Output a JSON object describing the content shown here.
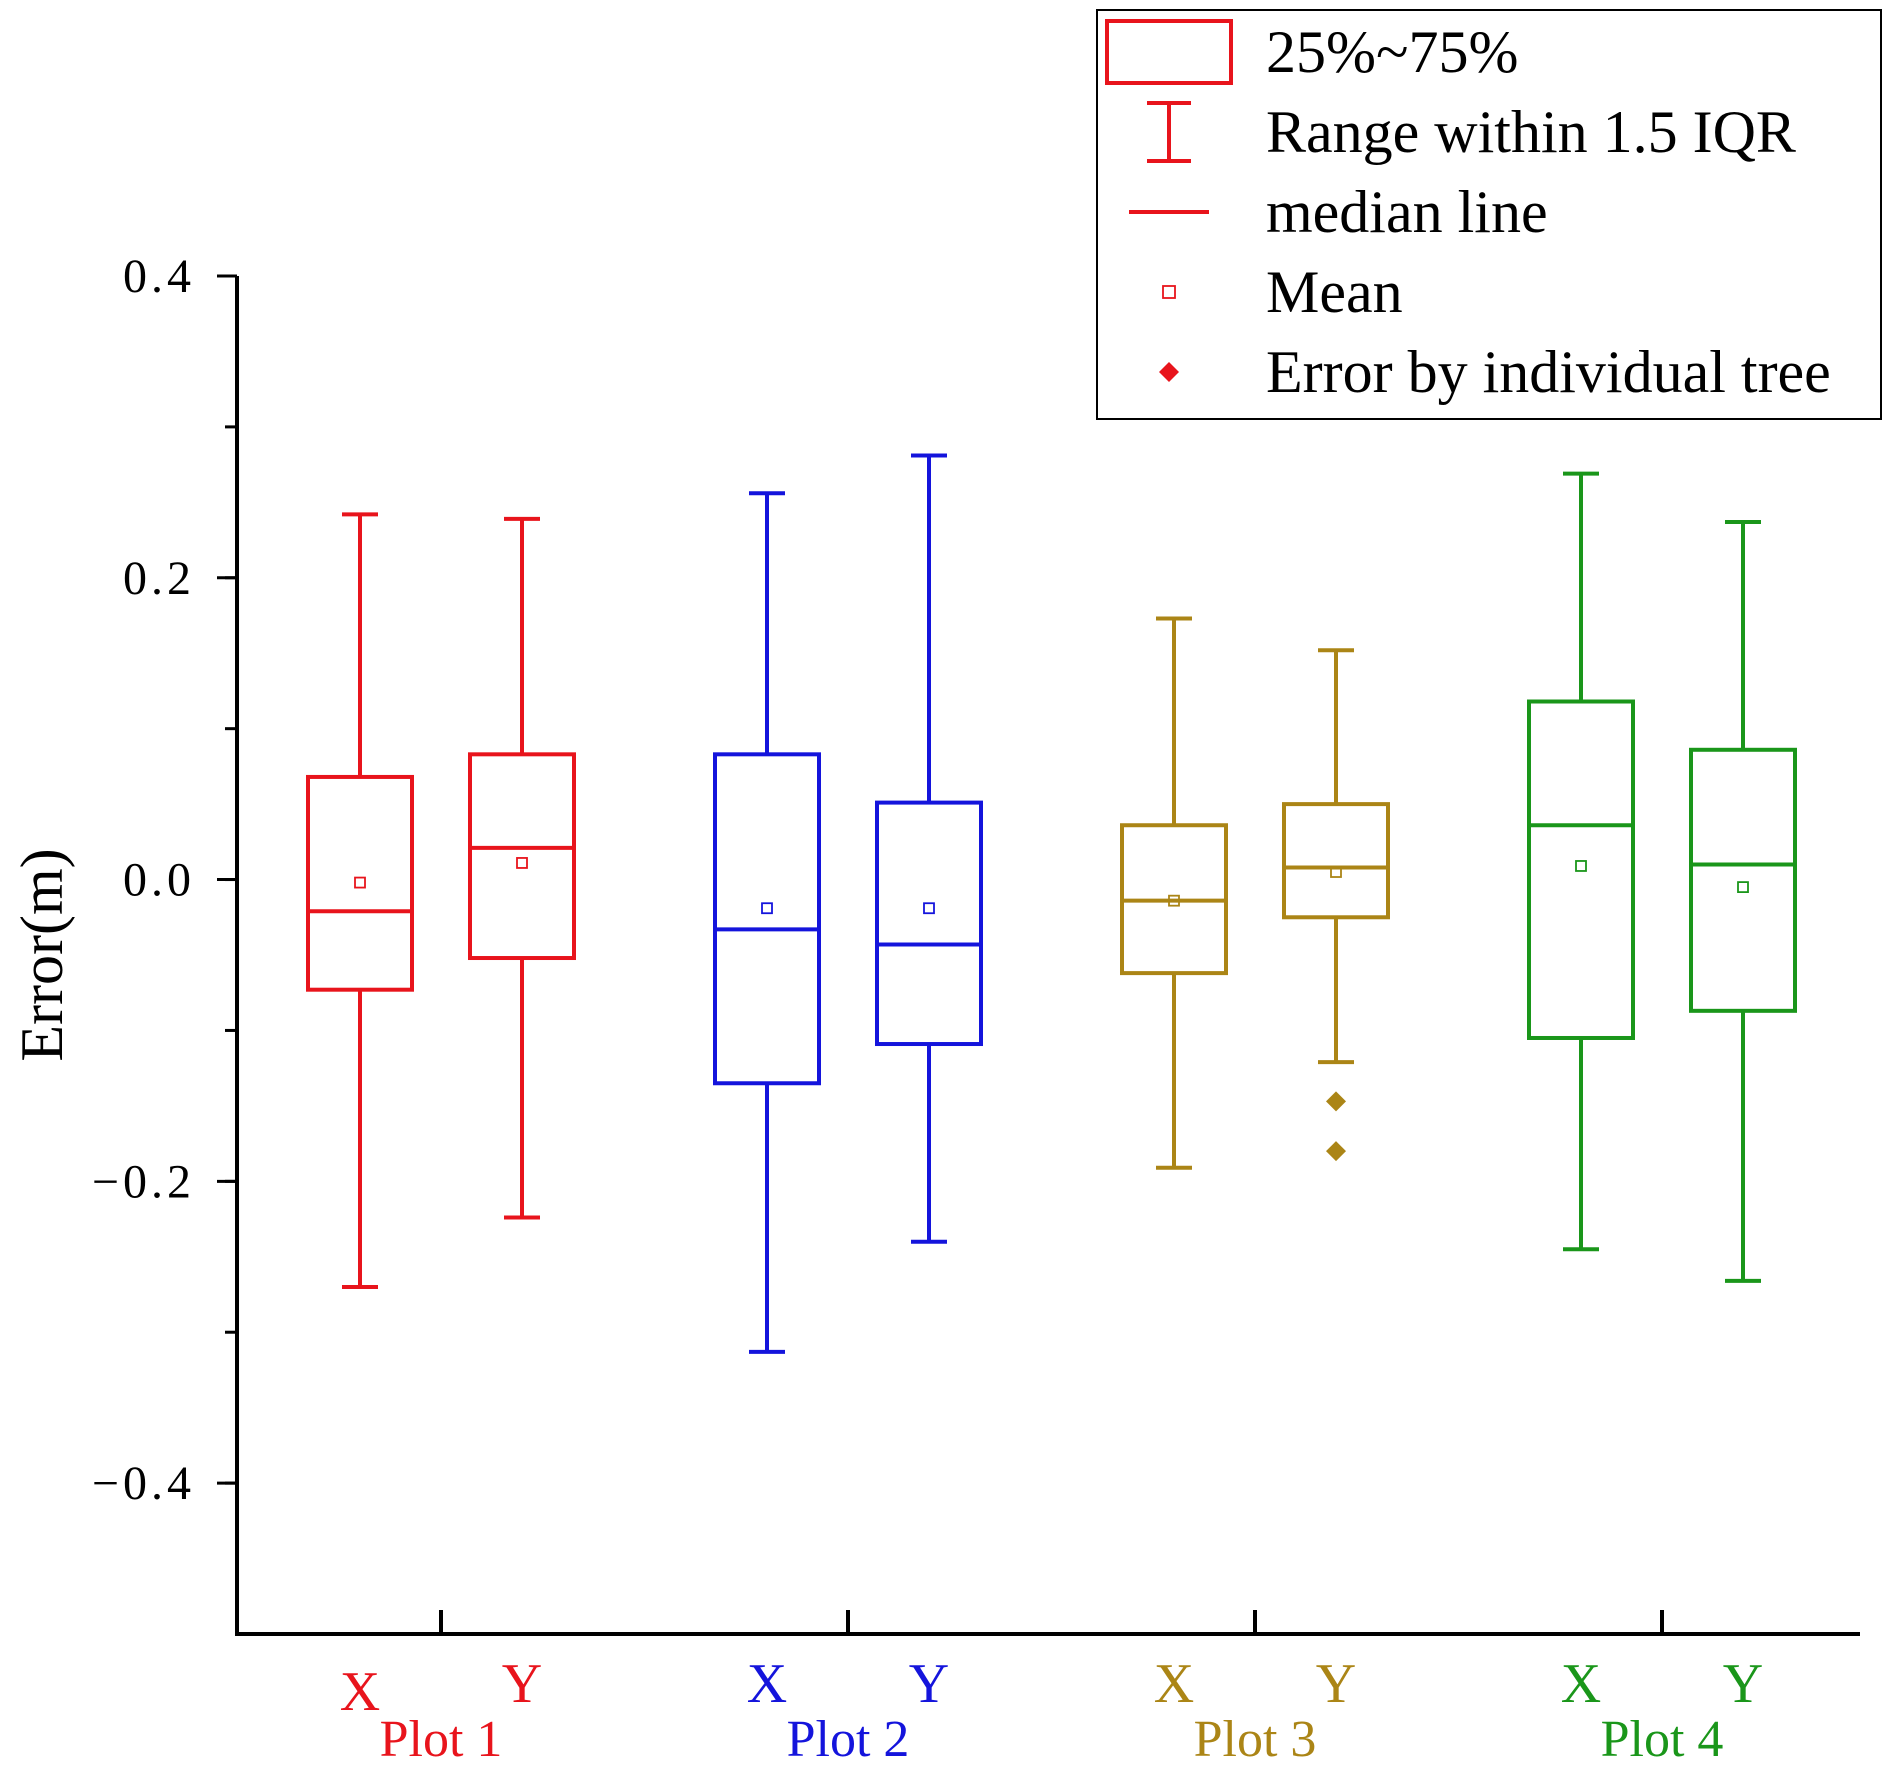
{
  "chart_data": {
    "type": "box",
    "title": "",
    "xlabel": "",
    "ylabel": "Error(m)",
    "ylim": [
      -0.5,
      0.4
    ],
    "y_ticks": [
      0.4,
      0.2,
      0.0,
      -0.2,
      -0.4
    ],
    "y_tick_labels": [
      "0.4",
      "0.2",
      "0.0",
      "−0.2",
      "−0.4"
    ],
    "y_minor_step": 0.1,
    "groups": [
      {
        "name": "Plot 1",
        "color": "#e8141c",
        "boxes": [
          {
            "label": "X",
            "q1": -0.073,
            "median": -0.021,
            "q3": 0.068,
            "whisker_low": -0.27,
            "whisker_high": 0.242,
            "mean": -0.002,
            "outliers": []
          },
          {
            "label": "Y",
            "q1": -0.052,
            "median": 0.021,
            "q3": 0.083,
            "whisker_low": -0.224,
            "whisker_high": 0.239,
            "mean": 0.011,
            "outliers": []
          }
        ]
      },
      {
        "name": "Plot 2",
        "color": "#1414dc",
        "boxes": [
          {
            "label": "X",
            "q1": -0.135,
            "median": -0.033,
            "q3": 0.083,
            "whisker_low": -0.313,
            "whisker_high": 0.256,
            "mean": -0.019,
            "outliers": []
          },
          {
            "label": "Y",
            "q1": -0.109,
            "median": -0.043,
            "q3": 0.051,
            "whisker_low": -0.24,
            "whisker_high": 0.281,
            "mean": -0.019,
            "outliers": []
          }
        ]
      },
      {
        "name": "Plot 3",
        "color": "#ab8516",
        "boxes": [
          {
            "label": "X",
            "q1": -0.062,
            "median": -0.014,
            "q3": 0.036,
            "whisker_low": -0.191,
            "whisker_high": 0.173,
            "mean": -0.014,
            "outliers": []
          },
          {
            "label": "Y",
            "q1": -0.025,
            "median": 0.008,
            "q3": 0.05,
            "whisker_low": -0.121,
            "whisker_high": 0.152,
            "mean": 0.005,
            "outliers": [
              -0.147,
              -0.18
            ]
          }
        ]
      },
      {
        "name": "Plot 4",
        "color": "#1a961a",
        "boxes": [
          {
            "label": "X",
            "q1": -0.105,
            "median": 0.036,
            "q3": 0.118,
            "whisker_low": -0.245,
            "whisker_high": 0.269,
            "mean": 0.009,
            "outliers": []
          },
          {
            "label": "Y",
            "q1": -0.087,
            "median": 0.01,
            "q3": 0.086,
            "whisker_low": -0.266,
            "whisker_high": 0.237,
            "mean": -0.005,
            "outliers": []
          }
        ]
      }
    ],
    "legend": {
      "position": "top-right",
      "color": "#e8141c",
      "entries": [
        {
          "symbol": "box",
          "label": "25%~75%"
        },
        {
          "symbol": "whisker",
          "label": "Range within 1.5 IQR"
        },
        {
          "symbol": "median",
          "label": "median line"
        },
        {
          "symbol": "mean",
          "label": "Mean"
        },
        {
          "symbol": "outlier",
          "label": "Error by individual tree"
        }
      ]
    }
  }
}
